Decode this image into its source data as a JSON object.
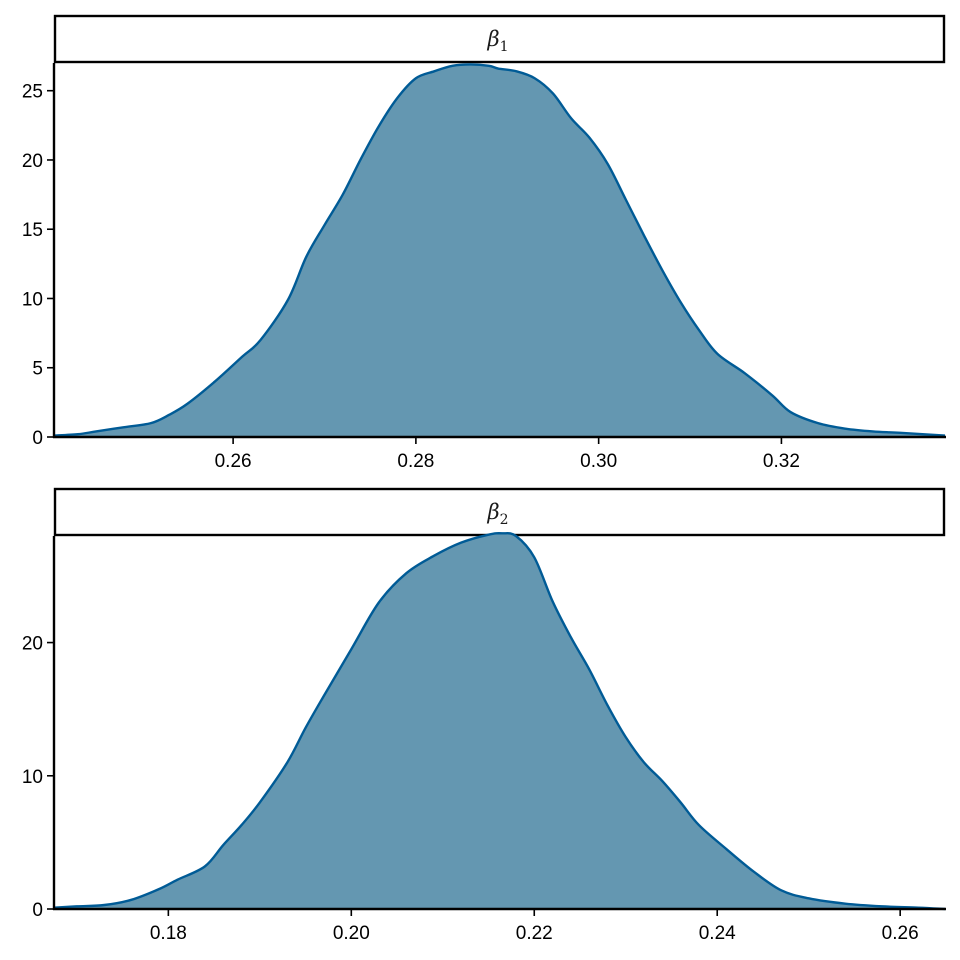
{
  "colors": {
    "fill": "#6497b1",
    "line": "#005b96"
  },
  "chart_data": [
    {
      "type": "area",
      "panel": {
        "symbol": "β",
        "subscript": "1"
      },
      "xlim": [
        0.2404,
        0.3379
      ],
      "ylim": [
        0,
        27
      ],
      "xticks": [
        0.26,
        0.28,
        0.3,
        0.32
      ],
      "xtick_labels": [
        "0.26",
        "0.28",
        "0.30",
        "0.32"
      ],
      "yticks": [
        0,
        5,
        10,
        15,
        20,
        25
      ],
      "ytick_labels": [
        "0",
        "5",
        "10",
        "15",
        "20",
        "25"
      ],
      "x": [
        0.2404,
        0.243,
        0.245,
        0.248,
        0.251,
        0.253,
        0.255,
        0.258,
        0.261,
        0.263,
        0.266,
        0.268,
        0.27,
        0.272,
        0.274,
        0.276,
        0.278,
        0.28,
        0.282,
        0.284,
        0.286,
        0.288,
        0.289,
        0.291,
        0.293,
        0.295,
        0.297,
        0.299,
        0.301,
        0.303,
        0.305,
        0.307,
        0.309,
        0.311,
        0.313,
        0.316,
        0.319,
        0.321,
        0.324,
        0.327,
        0.33,
        0.333,
        0.3379
      ],
      "y": [
        0.1,
        0.2,
        0.4,
        0.7,
        1.0,
        1.6,
        2.4,
        4.0,
        5.8,
        7.0,
        9.9,
        13.0,
        15.3,
        17.5,
        20.1,
        22.5,
        24.5,
        25.9,
        26.4,
        26.8,
        26.9,
        26.8,
        26.6,
        26.4,
        25.9,
        24.8,
        23.0,
        21.6,
        19.7,
        17.1,
        14.5,
        12.0,
        9.7,
        7.7,
        6.0,
        4.6,
        3.0,
        1.8,
        1.0,
        0.6,
        0.4,
        0.3,
        0.1
      ]
    },
    {
      "type": "area",
      "panel": {
        "symbol": "β",
        "subscript": "2"
      },
      "xlim": [
        0.1675,
        0.2649
      ],
      "ylim": [
        0,
        28
      ],
      "xticks": [
        0.18,
        0.2,
        0.22,
        0.24,
        0.26
      ],
      "xtick_labels": [
        "0.18",
        "0.20",
        "0.22",
        "0.24",
        "0.26"
      ],
      "yticks": [
        0,
        10,
        20
      ],
      "ytick_labels": [
        "0",
        "10",
        "20"
      ],
      "x": [
        0.1675,
        0.17,
        0.173,
        0.176,
        0.179,
        0.181,
        0.184,
        0.186,
        0.188,
        0.19,
        0.193,
        0.195,
        0.197,
        0.2,
        0.203,
        0.206,
        0.209,
        0.212,
        0.215,
        0.2165,
        0.218,
        0.22,
        0.222,
        0.224,
        0.226,
        0.228,
        0.23,
        0.232,
        0.234,
        0.236,
        0.238,
        0.241,
        0.244,
        0.247,
        0.25,
        0.254,
        0.258,
        0.262,
        0.2649
      ],
      "y": [
        0.1,
        0.2,
        0.3,
        0.7,
        1.5,
        2.2,
        3.2,
        4.8,
        6.3,
        8.0,
        11.0,
        13.6,
        16.0,
        19.5,
        23.0,
        25.2,
        26.5,
        27.5,
        28.1,
        28.2,
        28.0,
        26.4,
        23.1,
        20.4,
        18.0,
        15.3,
        12.9,
        11.0,
        9.6,
        8.0,
        6.3,
        4.5,
        2.8,
        1.4,
        0.8,
        0.4,
        0.2,
        0.1,
        0.0
      ]
    }
  ]
}
